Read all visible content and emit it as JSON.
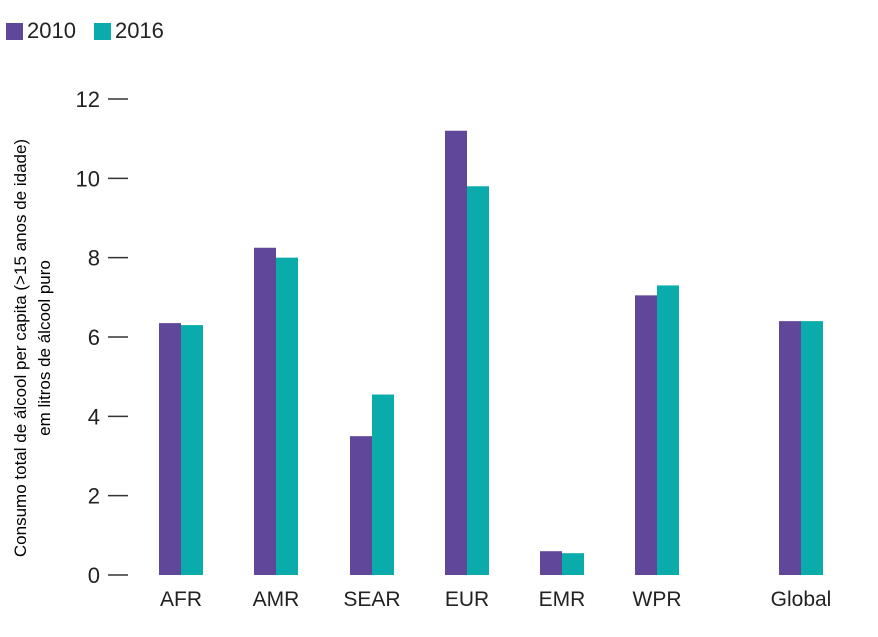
{
  "chart_data": {
    "type": "bar",
    "categories": [
      "AFR",
      "AMR",
      "SEAR",
      "EUR",
      "EMR",
      "WPR",
      "Global"
    ],
    "series": [
      {
        "name": "2010",
        "values": [
          6.35,
          8.25,
          3.5,
          11.2,
          0.6,
          7.05,
          6.4
        ],
        "color": "#61479a"
      },
      {
        "name": "2016",
        "values": [
          6.3,
          8.0,
          4.55,
          9.8,
          0.55,
          7.3,
          6.4
        ],
        "color": "#0aacab"
      }
    ],
    "ylabel_lines": [
      "Consumo total de álcool per capita (>15 anos de idade)",
      "em litros de álcool puro"
    ],
    "ylim": [
      0,
      12
    ],
    "yticks": [
      0,
      2,
      4,
      6,
      8,
      10,
      12
    ],
    "grid": false,
    "legend_position": "top-left"
  }
}
